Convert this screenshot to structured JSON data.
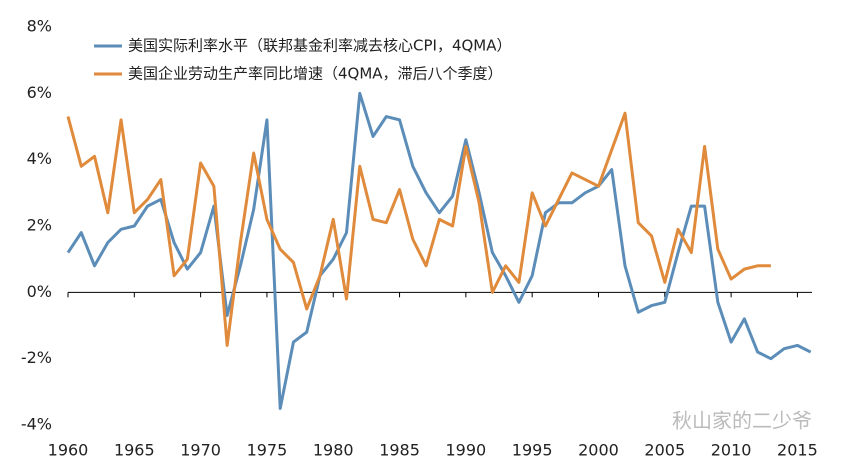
{
  "chart_data": {
    "type": "line",
    "x": [
      1960,
      1961,
      1962,
      1963,
      1964,
      1965,
      1966,
      1967,
      1968,
      1969,
      1970,
      1971,
      1972,
      1973,
      1974,
      1975,
      1976,
      1977,
      1978,
      1979,
      1980,
      1981,
      1982,
      1983,
      1984,
      1985,
      1986,
      1987,
      1988,
      1989,
      1990,
      1991,
      1992,
      1993,
      1994,
      1995,
      1996,
      1997,
      1998,
      1999,
      2000,
      2001,
      2002,
      2003,
      2004,
      2005,
      2006,
      2007,
      2008,
      2009,
      2010,
      2011,
      2012,
      2013,
      2014,
      2015,
      2016
    ],
    "series": [
      {
        "name": "美国实际利率水平（联邦基金利率减去核心CPI，4QMA）",
        "color": "#5b8db8",
        "values": [
          1.2,
          1.8,
          0.8,
          1.5,
          1.9,
          2.0,
          2.6,
          2.8,
          1.5,
          0.7,
          1.2,
          2.6,
          -0.7,
          0.8,
          2.5,
          5.2,
          -3.5,
          -1.5,
          -1.2,
          0.5,
          1.0,
          1.8,
          6.0,
          4.7,
          5.3,
          5.2,
          3.8,
          3.0,
          2.4,
          2.9,
          4.6,
          3.0,
          1.2,
          0.5,
          -0.3,
          0.5,
          2.4,
          2.7,
          2.7,
          3.0,
          3.2,
          3.7,
          0.8,
          -0.6,
          -0.4,
          -0.3,
          1.2,
          2.6,
          2.6,
          -0.3,
          -1.5,
          -0.8,
          -1.8,
          -2.0,
          -1.7,
          -1.6,
          -1.8
        ]
      },
      {
        "name": "美国企业劳动生产率同比增速（4QMA，滞后八个季度）",
        "color": "#e08a3c",
        "values": [
          5.3,
          3.8,
          4.1,
          2.4,
          5.2,
          2.4,
          2.8,
          3.4,
          0.5,
          1.0,
          3.9,
          3.2,
          -1.6,
          1.5,
          4.2,
          2.2,
          1.3,
          0.9,
          -0.5,
          0.5,
          2.2,
          -0.2,
          3.8,
          2.2,
          2.1,
          3.1,
          1.6,
          0.8,
          2.2,
          2.0,
          4.4,
          2.7,
          0.0,
          0.8,
          0.3,
          3.0,
          2.0,
          2.8,
          3.6,
          3.4,
          3.2,
          4.3,
          5.4,
          2.1,
          1.7,
          0.3,
          1.9,
          1.2,
          4.4,
          1.3,
          0.4,
          0.7,
          0.8,
          0.8,
          null,
          null,
          null
        ]
      }
    ],
    "xlim": [
      1960,
      2016.1
    ],
    "xticks": [
      1960,
      1965,
      1970,
      1975,
      1980,
      1985,
      1990,
      1995,
      2000,
      2005,
      2010,
      2015
    ],
    "ylim": [
      -4,
      8
    ],
    "yticks": [
      {
        "value": -4,
        "label": "-4%"
      },
      {
        "value": -2,
        "label": "-2%"
      },
      {
        "value": 0,
        "label": "0%"
      },
      {
        "value": 2,
        "label": "2%"
      },
      {
        "value": 4,
        "label": "4%"
      },
      {
        "value": 6,
        "label": "6%"
      },
      {
        "value": 8,
        "label": "8%"
      }
    ],
    "legend": "upper left",
    "watermark": "秋山家的二少爷"
  }
}
